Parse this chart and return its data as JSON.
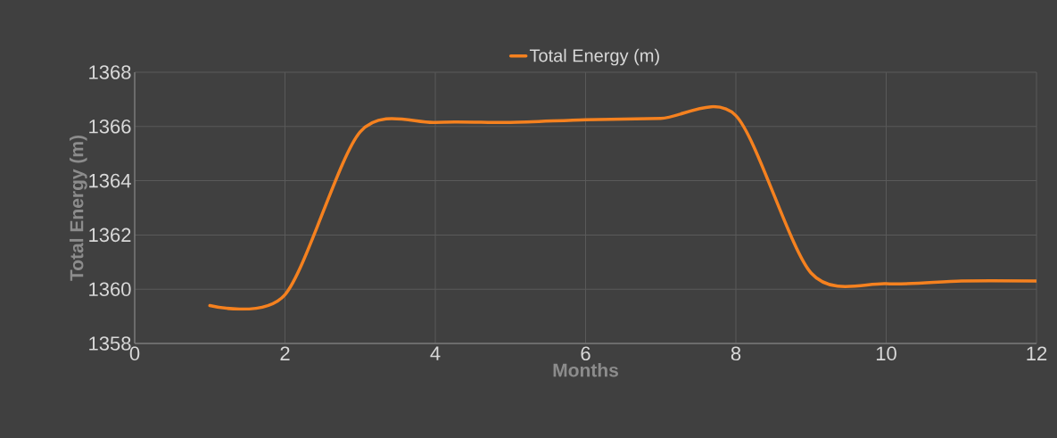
{
  "chart_data": {
    "type": "line",
    "xlabel": "Months",
    "ylabel": "Total Energy (m)",
    "x": [
      1,
      2,
      3,
      4,
      5,
      6,
      7,
      8,
      9,
      10,
      11,
      12
    ],
    "series": [
      {
        "name": "Total Energy (m)",
        "color": "#f5811f",
        "values": [
          1359.4,
          1359.8,
          1365.8,
          1366.15,
          1366.15,
          1366.25,
          1366.3,
          1366.4,
          1360.6,
          1360.2,
          1360.3,
          1360.3
        ]
      }
    ],
    "xlim": [
      0,
      12
    ],
    "xticks": [
      0,
      2,
      4,
      6,
      8,
      10,
      12
    ],
    "ylim": [
      1358,
      1368
    ],
    "yticks": [
      1358,
      1360,
      1362,
      1364,
      1366,
      1368
    ],
    "grid": true,
    "legend": "top",
    "marker": "none",
    "line_style": "solid"
  }
}
